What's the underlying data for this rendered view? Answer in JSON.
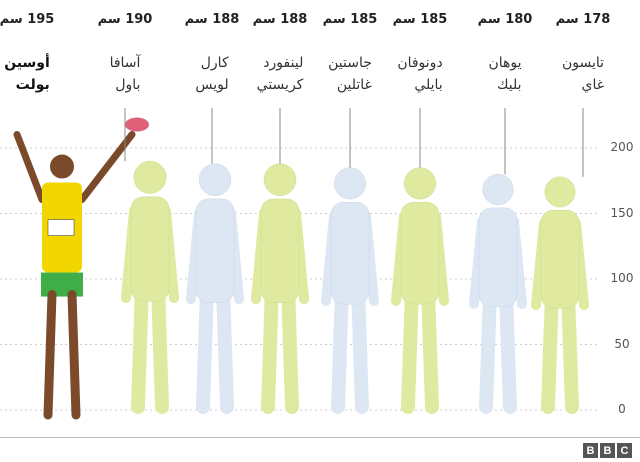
{
  "chart_data": {
    "type": "bar",
    "ylim": [
      0,
      200
    ],
    "yticks": [
      0,
      50,
      100,
      150,
      200
    ],
    "grid": true,
    "unit": "سم",
    "categories": [
      "أوسين بولت",
      "آسافا باول",
      "كارل لويس",
      "لينفورد كريستي",
      "جاستين غاتلين",
      "دونوفان بايلي",
      "يوهان بليك",
      "تايسون غاي"
    ],
    "values": [
      195,
      190,
      188,
      188,
      185,
      185,
      180,
      178
    ],
    "athletes": [
      {
        "line1": "أوسين",
        "line2": "بولت",
        "height_label": "195 سم",
        "value": 195,
        "style": "photo"
      },
      {
        "line1": "آسافا",
        "line2": "باول",
        "height_label": "190 سم",
        "value": 190,
        "style": "green"
      },
      {
        "line1": "كارل",
        "line2": "لويس",
        "height_label": "188 سم",
        "value": 188,
        "style": "blue"
      },
      {
        "line1": "لينفورد",
        "line2": "كريستي",
        "height_label": "188 سم",
        "value": 188,
        "style": "green"
      },
      {
        "line1": "جاستين",
        "line2": "غاتلين",
        "height_label": "185 سم",
        "value": 185,
        "style": "blue"
      },
      {
        "line1": "دونوفان",
        "line2": "بايلي",
        "height_label": "185 سم",
        "value": 185,
        "style": "green"
      },
      {
        "line1": "يوهان",
        "line2": "بليك",
        "height_label": "180 سم",
        "value": 180,
        "style": "blue"
      },
      {
        "line1": "تايسون",
        "line2": "غاي",
        "height_label": "178 سم",
        "value": 178,
        "style": "green"
      }
    ],
    "colors": {
      "green": "#dfeaa0",
      "blue": "#dce7f3",
      "photo_shirt": "#f2d600",
      "photo_shorts": "#3fae49",
      "skin": "#7a4a2a"
    }
  },
  "logo": {
    "letters": [
      "B",
      "B",
      "C"
    ]
  }
}
